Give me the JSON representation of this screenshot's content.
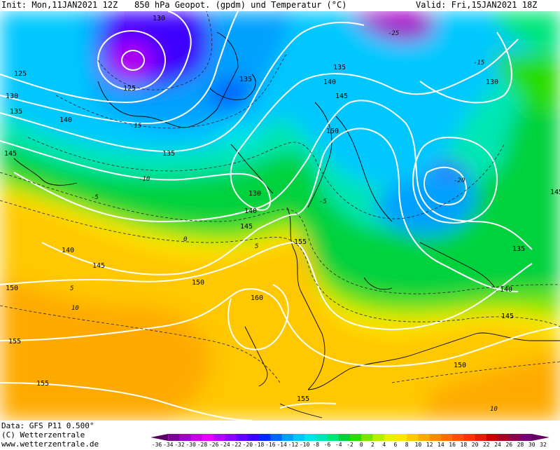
{
  "header": {
    "init": "Init: Mon,11JAN2021 12Z",
    "title": "850 hPa Geopot. (gpdm) und Temperatur (°C)",
    "valid": "Valid: Fri,15JAN2021 18Z"
  },
  "footer": {
    "data_source": "Data: GFS P11 0.500°",
    "copyright": "(C) Wetterzentrale",
    "website": "www.wetterzentrale.de"
  },
  "map": {
    "geopotential_labels": [
      "125",
      "130",
      "135",
      "140",
      "145",
      "150",
      "155",
      "160"
    ],
    "temperature_labels": [
      "-25",
      "-20",
      "-15",
      "-10",
      "-5",
      "0",
      "5",
      "10"
    ],
    "low_centers": [
      "Greenland low",
      "Russia low"
    ]
  },
  "colorbar": {
    "ticks": [
      "-36",
      "-34",
      "-32",
      "-30",
      "-28",
      "-26",
      "-24",
      "-22",
      "-20",
      "-18",
      "-16",
      "-14",
      "-12",
      "-10",
      "-8",
      "-6",
      "-4",
      "-2",
      "0",
      "2",
      "4",
      "6",
      "8",
      "10",
      "12",
      "14",
      "16",
      "18",
      "20",
      "22",
      "24",
      "26",
      "28",
      "30",
      "32"
    ],
    "colors": [
      "#5a0064",
      "#7d0096",
      "#a000c8",
      "#c800e6",
      "#e600ff",
      "#b400ff",
      "#8c00ff",
      "#6400ff",
      "#3c00ff",
      "#0028ff",
      "#0064ff",
      "#00a0ff",
      "#00c8ff",
      "#00e6e6",
      "#00e6b4",
      "#00e678",
      "#00d23c",
      "#28dc00",
      "#78e600",
      "#b4f000",
      "#e6f000",
      "#ffe600",
      "#ffc800",
      "#ffaa00",
      "#ff8c00",
      "#ff6e00",
      "#ff5000",
      "#ff3200",
      "#e61e00",
      "#c80000",
      "#aa0028",
      "#8c0050",
      "#780078",
      "#640064"
    ]
  }
}
